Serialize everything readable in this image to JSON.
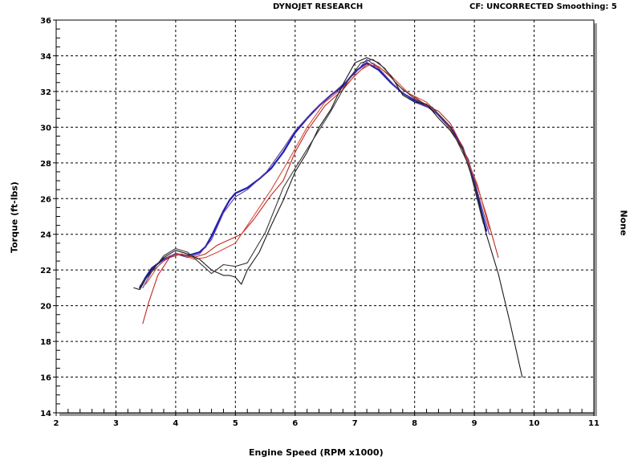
{
  "header": {
    "title": "DYNOJET RESEARCH",
    "info": "CF: UNCORRECTED  Smoothing: 5"
  },
  "chart_data": {
    "type": "line",
    "title": "DYNOJET RESEARCH",
    "xlabel": "Engine Speed (RPM x1000)",
    "ylabel": "Torque (ft-lbs)",
    "y2label": "None",
    "xlim": [
      2,
      11
    ],
    "ylim": [
      14,
      36
    ],
    "xticks": [
      2,
      3,
      4,
      5,
      6,
      7,
      8,
      9,
      10,
      11
    ],
    "yticks": [
      14,
      16,
      18,
      20,
      22,
      24,
      26,
      28,
      30,
      32,
      34,
      36
    ],
    "grid": true,
    "series": [
      {
        "color": "#1f1fb0",
        "points": [
          [
            3.4,
            21.0
          ],
          [
            3.5,
            21.6
          ],
          [
            3.6,
            22.1
          ],
          [
            3.8,
            22.6
          ],
          [
            4.0,
            22.9
          ],
          [
            4.2,
            22.8
          ],
          [
            4.4,
            23.0
          ],
          [
            4.5,
            23.3
          ],
          [
            4.6,
            23.9
          ],
          [
            4.7,
            24.6
          ],
          [
            4.8,
            25.3
          ],
          [
            4.9,
            25.9
          ],
          [
            5.0,
            26.3
          ],
          [
            5.2,
            26.6
          ],
          [
            5.4,
            27.1
          ],
          [
            5.6,
            27.7
          ],
          [
            5.8,
            28.6
          ],
          [
            6.0,
            29.7
          ],
          [
            6.2,
            30.5
          ],
          [
            6.4,
            31.2
          ],
          [
            6.6,
            31.8
          ],
          [
            6.8,
            32.3
          ],
          [
            7.0,
            33.1
          ],
          [
            7.2,
            33.6
          ],
          [
            7.4,
            33.2
          ],
          [
            7.6,
            32.5
          ],
          [
            7.8,
            31.9
          ],
          [
            8.0,
            31.5
          ],
          [
            8.2,
            31.2
          ],
          [
            8.4,
            30.7
          ],
          [
            8.6,
            30.0
          ],
          [
            8.8,
            28.9
          ],
          [
            9.0,
            27.0
          ],
          [
            9.1,
            25.5
          ],
          [
            9.2,
            24.2
          ]
        ]
      },
      {
        "color": "#5a3aa0",
        "points": [
          [
            3.45,
            21.0
          ],
          [
            3.6,
            21.9
          ],
          [
            3.8,
            22.5
          ],
          [
            4.0,
            22.9
          ],
          [
            4.2,
            22.7
          ],
          [
            4.4,
            22.9
          ],
          [
            4.6,
            23.7
          ],
          [
            4.8,
            25.2
          ],
          [
            5.0,
            26.1
          ],
          [
            5.2,
            26.5
          ],
          [
            5.5,
            27.4
          ],
          [
            5.8,
            28.8
          ],
          [
            6.0,
            29.8
          ],
          [
            6.3,
            30.9
          ],
          [
            6.6,
            31.8
          ],
          [
            7.0,
            33.0
          ],
          [
            7.2,
            33.8
          ],
          [
            7.4,
            33.3
          ],
          [
            7.7,
            32.2
          ],
          [
            8.0,
            31.4
          ],
          [
            8.3,
            31.0
          ],
          [
            8.6,
            29.9
          ],
          [
            8.9,
            28.2
          ],
          [
            9.1,
            25.8
          ],
          [
            9.25,
            24.0
          ]
        ]
      },
      {
        "color": "#c0281e",
        "points": [
          [
            3.45,
            19.0
          ],
          [
            3.55,
            20.2
          ],
          [
            3.7,
            21.7
          ],
          [
            3.9,
            22.7
          ],
          [
            4.1,
            22.9
          ],
          [
            4.3,
            22.7
          ],
          [
            4.5,
            22.9
          ],
          [
            4.7,
            23.4
          ],
          [
            4.9,
            23.7
          ],
          [
            5.1,
            24.0
          ],
          [
            5.3,
            24.8
          ],
          [
            5.6,
            26.2
          ],
          [
            5.8,
            27.0
          ],
          [
            6.0,
            28.6
          ],
          [
            6.2,
            29.8
          ],
          [
            6.5,
            31.2
          ],
          [
            6.8,
            32.1
          ],
          [
            7.0,
            32.9
          ],
          [
            7.2,
            33.5
          ],
          [
            7.4,
            33.4
          ],
          [
            7.6,
            32.8
          ],
          [
            7.8,
            32.1
          ],
          [
            8.0,
            31.7
          ],
          [
            8.2,
            31.2
          ],
          [
            8.4,
            30.9
          ],
          [
            8.6,
            30.2
          ],
          [
            8.8,
            28.9
          ],
          [
            9.0,
            27.2
          ],
          [
            9.2,
            25.1
          ],
          [
            9.4,
            22.7
          ]
        ]
      },
      {
        "color": "#d64a3a",
        "points": [
          [
            3.5,
            21.2
          ],
          [
            3.7,
            22.2
          ],
          [
            3.9,
            22.8
          ],
          [
            4.1,
            22.9
          ],
          [
            4.3,
            22.6
          ],
          [
            4.5,
            22.7
          ],
          [
            4.7,
            23.0
          ],
          [
            5.0,
            23.5
          ],
          [
            5.3,
            25.0
          ],
          [
            5.6,
            26.5
          ],
          [
            5.9,
            28.2
          ],
          [
            6.2,
            30.0
          ],
          [
            6.5,
            31.4
          ],
          [
            6.8,
            32.2
          ],
          [
            7.1,
            33.2
          ],
          [
            7.3,
            33.6
          ],
          [
            7.6,
            32.9
          ],
          [
            7.9,
            31.9
          ],
          [
            8.2,
            31.4
          ],
          [
            8.5,
            30.4
          ],
          [
            8.8,
            28.8
          ],
          [
            9.05,
            26.8
          ],
          [
            9.25,
            24.3
          ]
        ]
      },
      {
        "color": "#1a1a1a",
        "points": [
          [
            3.3,
            21.0
          ],
          [
            3.4,
            20.9
          ],
          [
            3.5,
            21.5
          ],
          [
            3.6,
            22.0
          ],
          [
            3.8,
            22.7
          ],
          [
            4.0,
            23.1
          ],
          [
            4.2,
            22.9
          ],
          [
            4.4,
            22.6
          ],
          [
            4.6,
            22.0
          ],
          [
            4.8,
            21.7
          ],
          [
            4.9,
            21.7
          ],
          [
            5.0,
            21.6
          ],
          [
            5.1,
            21.2
          ],
          [
            5.2,
            22.0
          ],
          [
            5.4,
            23.0
          ],
          [
            5.6,
            24.5
          ],
          [
            5.8,
            25.9
          ],
          [
            6.0,
            27.5
          ],
          [
            6.2,
            28.6
          ],
          [
            6.4,
            30.0
          ],
          [
            6.6,
            31.0
          ],
          [
            6.8,
            32.4
          ],
          [
            7.0,
            33.6
          ],
          [
            7.2,
            33.9
          ],
          [
            7.4,
            33.6
          ],
          [
            7.6,
            32.9
          ],
          [
            7.8,
            31.8
          ],
          [
            8.0,
            31.4
          ],
          [
            8.2,
            31.3
          ],
          [
            8.4,
            30.5
          ],
          [
            8.6,
            29.8
          ],
          [
            8.8,
            28.8
          ],
          [
            9.0,
            26.8
          ],
          [
            9.2,
            24.0
          ],
          [
            9.4,
            21.8
          ],
          [
            9.6,
            19.0
          ],
          [
            9.8,
            16.0
          ]
        ]
      },
      {
        "color": "#3a3a3a",
        "points": [
          [
            3.4,
            21.1
          ],
          [
            3.6,
            21.9
          ],
          [
            3.8,
            22.8
          ],
          [
            4.0,
            23.2
          ],
          [
            4.2,
            23.0
          ],
          [
            4.4,
            22.4
          ],
          [
            4.6,
            21.8
          ],
          [
            4.8,
            22.3
          ],
          [
            5.0,
            22.2
          ],
          [
            5.2,
            22.4
          ],
          [
            5.5,
            24.1
          ],
          [
            5.8,
            26.6
          ],
          [
            6.0,
            27.7
          ],
          [
            6.3,
            29.3
          ],
          [
            6.6,
            30.9
          ],
          [
            6.9,
            32.7
          ],
          [
            7.1,
            33.6
          ],
          [
            7.3,
            33.8
          ],
          [
            7.5,
            33.3
          ],
          [
            7.7,
            32.4
          ],
          [
            8.0,
            31.6
          ],
          [
            8.3,
            31.1
          ],
          [
            8.6,
            30.0
          ],
          [
            8.9,
            27.9
          ],
          [
            9.15,
            24.6
          ]
        ]
      }
    ]
  }
}
